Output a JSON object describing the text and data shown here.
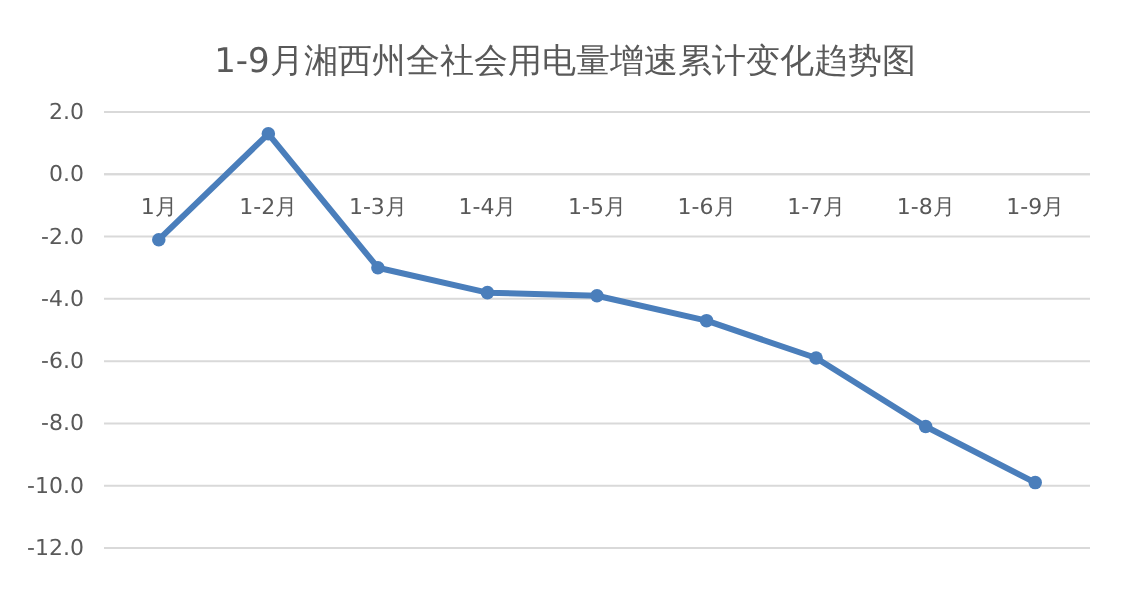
{
  "chart_data": {
    "type": "line",
    "title": "1-9月湘西州全社会用电量增速累计变化趋势图",
    "categories": [
      "1月",
      "1-2月",
      "1-3月",
      "1-4月",
      "1-5月",
      "1-6月",
      "1-7月",
      "1-8月",
      "1-9月"
    ],
    "series": [
      {
        "color": "#4a7ebb",
        "values": [
          -2.1,
          1.3,
          -3.0,
          -3.8,
          -3.9,
          -4.7,
          -5.9,
          -8.1,
          -9.9
        ]
      }
    ],
    "ylim": [
      -12,
      2
    ],
    "yticks": [
      {
        "value": 2,
        "label": "2.0"
      },
      {
        "value": 0,
        "label": "0.0"
      },
      {
        "value": -2,
        "label": "-2.0"
      },
      {
        "value": -4,
        "label": "-4.0"
      },
      {
        "value": -6,
        "label": "-6.0"
      },
      {
        "value": -8,
        "label": "-8.0"
      },
      {
        "value": -10,
        "label": "-10.0"
      },
      {
        "value": -12,
        "label": "-12.0"
      }
    ],
    "grid": "y",
    "marker": "circle",
    "line_style": "solid",
    "legend": false
  }
}
